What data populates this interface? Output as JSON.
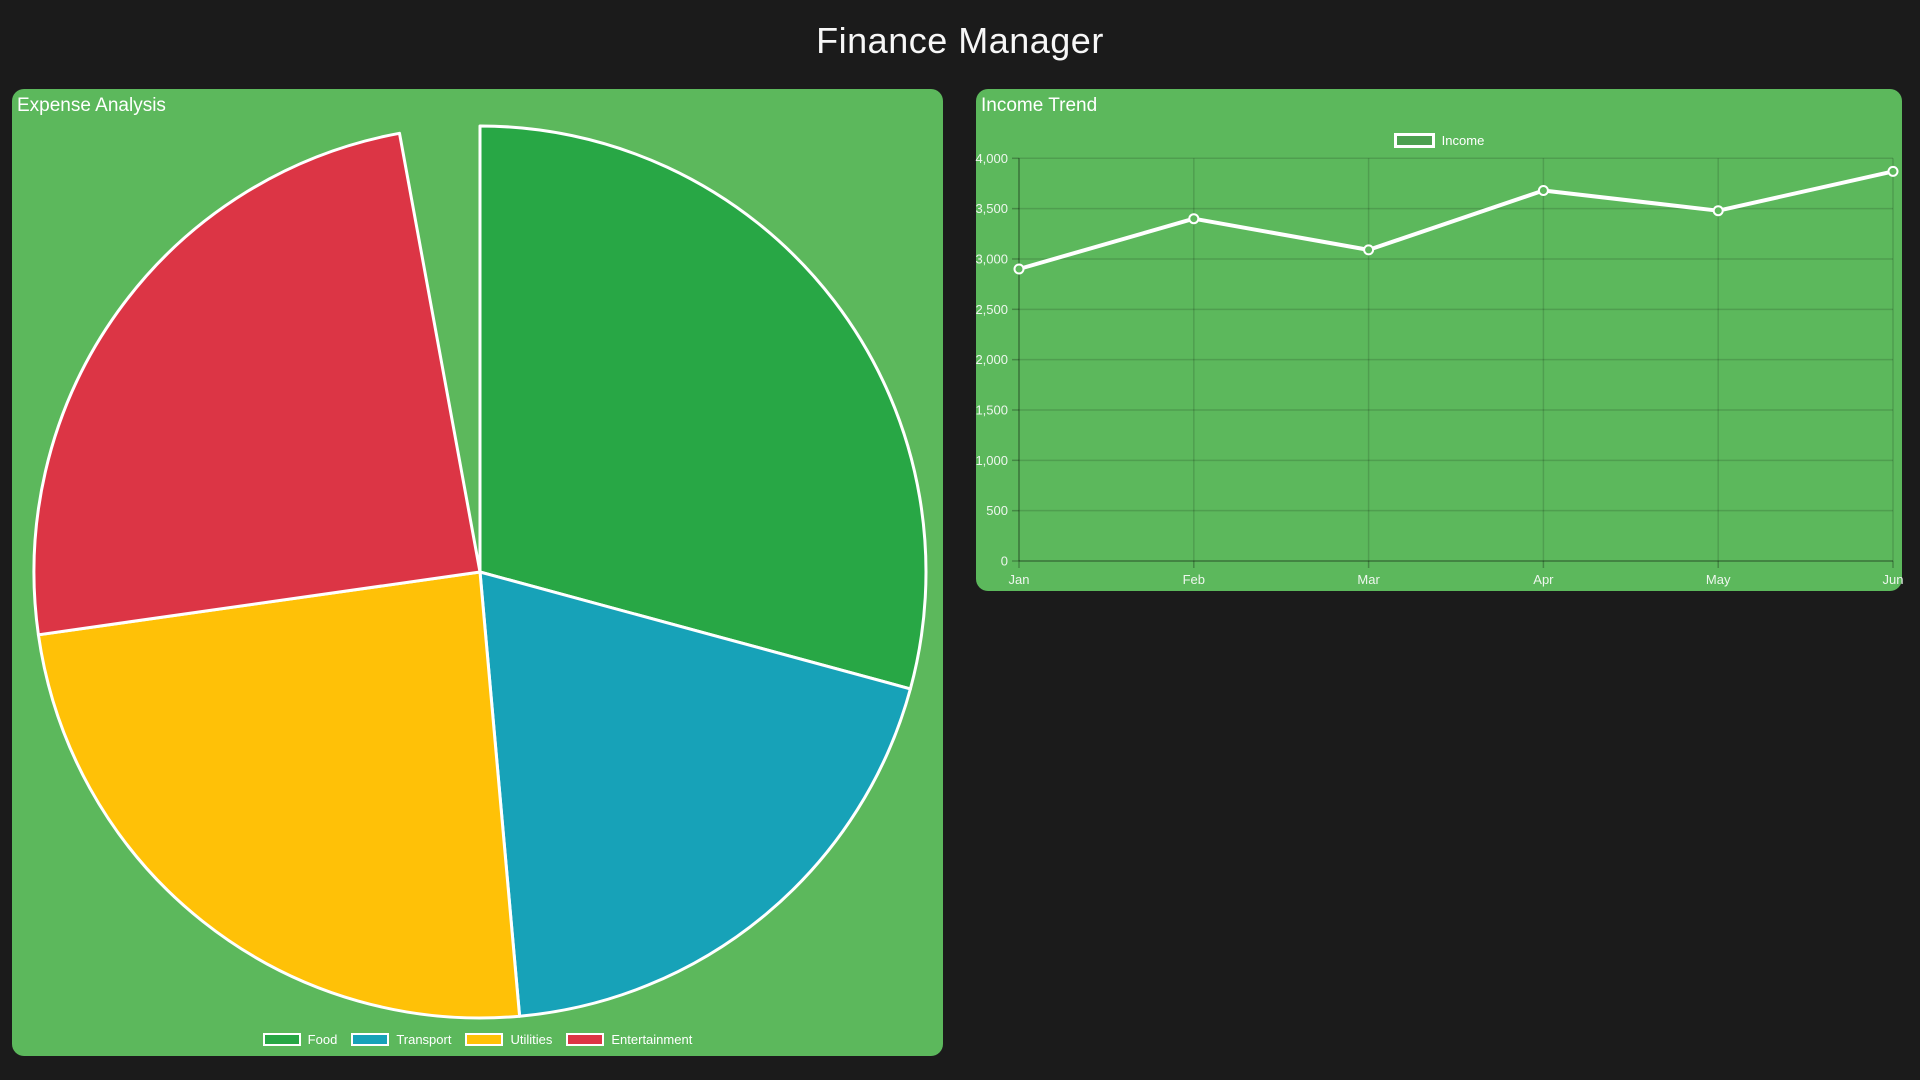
{
  "page": {
    "title": "Finance Manager",
    "background_color": "#1b1b1b",
    "panel_color": "#5cb85c",
    "text_color": "#ffffff"
  },
  "chart_data": [
    {
      "id": "expense-pie",
      "type": "pie",
      "title": "Expense Analysis",
      "legend_position": "bottom",
      "slice_border_color": "#ffffff",
      "slices": [
        {
          "label": "Food",
          "color": "#28a745",
          "start_deg": 0,
          "end_deg": 105.2,
          "pct": 29.2
        },
        {
          "label": "Transport",
          "color": "#17a2b8",
          "start_deg": 105.2,
          "end_deg": 174.9,
          "pct": 19.4
        },
        {
          "label": "Utilities",
          "color": "#ffc107",
          "start_deg": 174.9,
          "end_deg": 261.9,
          "pct": 24.2
        },
        {
          "label": "Entertainment",
          "color": "#dc3545",
          "start_deg": 261.9,
          "end_deg": 349.6,
          "pct": 24.4
        }
      ],
      "layout_note": "slices start at 12 o'clock running clockwise; circle is not fully closed (~10 deg of panel background visible before 12 o'clock)"
    },
    {
      "id": "income-line",
      "type": "line",
      "title": "Income Trend",
      "legend_position": "top",
      "categories": [
        "Jan",
        "Feb",
        "Mar",
        "Apr",
        "May",
        "Jun"
      ],
      "series": [
        {
          "name": "Income",
          "color": "#ffffff",
          "marker": "circle",
          "legend_fill": "#4ca050",
          "values": [
            2900,
            3400,
            3090,
            3680,
            3480,
            3870
          ]
        }
      ],
      "ylim": [
        0,
        4000
      ],
      "ytick_step": 500,
      "ytick_labels": [
        "0",
        "500",
        "1,000",
        "1,500",
        "2,000",
        "2,500",
        "3,000",
        "3,500",
        "4,000"
      ],
      "grid": true
    }
  ]
}
